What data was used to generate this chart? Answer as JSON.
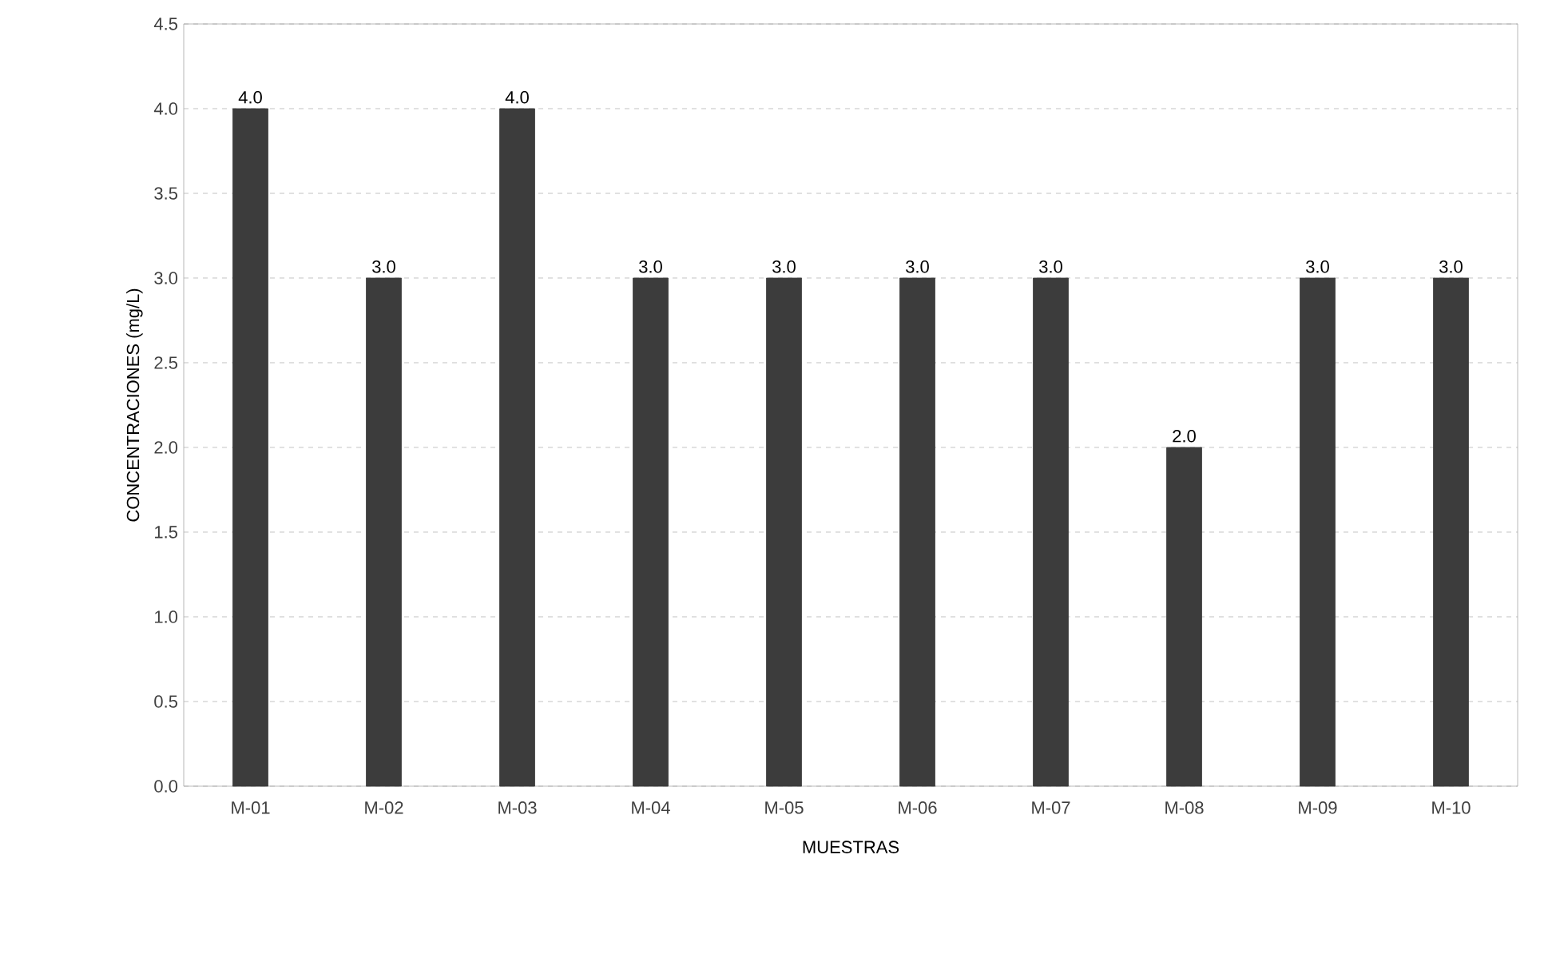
{
  "chart_data": {
    "type": "bar",
    "xlabel": "MUESTRAS",
    "ylabel": "CONCENTRACIONES (mg/L)",
    "categories": [
      "M-01",
      "M-02",
      "M-03",
      "M-04",
      "M-05",
      "M-06",
      "M-07",
      "M-08",
      "M-09",
      "M-10"
    ],
    "values": [
      4,
      3,
      4,
      3,
      3,
      3,
      3,
      2,
      3,
      3
    ],
    "value_labels": [
      "4.0",
      "3.0",
      "4.0",
      "3.0",
      "3.0",
      "3.0",
      "3.0",
      "2.0",
      "3.0",
      "3.0"
    ],
    "color": "#3c3c3c",
    "ylim": [
      0,
      4.5
    ],
    "yticks": [
      {
        "value": 0,
        "label": "0.0"
      },
      {
        "value": 0.5,
        "label": "0.5"
      },
      {
        "value": 1,
        "label": "1.0"
      },
      {
        "value": 1.5,
        "label": "1.5"
      },
      {
        "value": 2,
        "label": "2.0"
      },
      {
        "value": 2.5,
        "label": "2.5"
      },
      {
        "value": 3,
        "label": "3.0"
      },
      {
        "value": 3.5,
        "label": "3.5"
      },
      {
        "value": 4,
        "label": "4.0"
      },
      {
        "value": 4.5,
        "label": "4.5"
      }
    ],
    "grid": "y"
  }
}
